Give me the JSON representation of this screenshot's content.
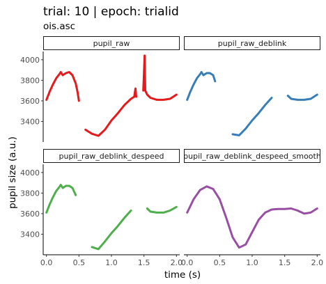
{
  "chart_data": {
    "type": "line",
    "title": "trial: 10 | epoch: trialid",
    "subtitle": "ois.asc",
    "xlabel": "time (s)",
    "ylabel": "pupil size (a.u.)",
    "xlim": [
      -0.05,
      2.05
    ],
    "ylim": [
      3200,
      4080
    ],
    "x_ticks": [
      0.0,
      0.5,
      1.0,
      1.5,
      2.0
    ],
    "x_tick_labels": [
      "0.0",
      "0.5",
      "1.0",
      "1.5",
      "2.0"
    ],
    "y_ticks": [
      3400,
      3600,
      3800,
      4000
    ],
    "y_tick_labels": [
      "3400",
      "3600",
      "3800",
      "4000"
    ],
    "grid": false,
    "panels": [
      {
        "label": "pupil_raw",
        "color": "#E41A1C",
        "segments": [
          [
            [
              0.0,
              3610
            ],
            [
              0.05,
              3690
            ],
            [
              0.1,
              3760
            ],
            [
              0.15,
              3820
            ],
            [
              0.2,
              3860
            ],
            [
              0.22,
              3880
            ],
            [
              0.25,
              3850
            ],
            [
              0.3,
              3870
            ],
            [
              0.35,
              3880
            ],
            [
              0.4,
              3850
            ],
            [
              0.45,
              3770
            ],
            [
              0.48,
              3680
            ],
            [
              0.5,
              3600
            ]
          ],
          [
            [
              0.6,
              3320
            ],
            [
              0.7,
              3280
            ],
            [
              0.8,
              3260
            ],
            [
              0.9,
              3320
            ],
            [
              1.0,
              3410
            ],
            [
              1.1,
              3480
            ],
            [
              1.2,
              3560
            ],
            [
              1.3,
              3620
            ],
            [
              1.35,
              3640
            ],
            [
              1.37,
              3720
            ],
            [
              1.38,
              3640
            ]
          ],
          [
            [
              1.49,
              3700
            ],
            [
              1.5,
              3870
            ],
            [
              1.51,
              4040
            ],
            [
              1.52,
              3700
            ],
            [
              1.55,
              3660
            ],
            [
              1.6,
              3630
            ],
            [
              1.7,
              3610
            ],
            [
              1.8,
              3610
            ],
            [
              1.9,
              3620
            ],
            [
              2.0,
              3660
            ]
          ]
        ]
      },
      {
        "label": "pupil_raw_deblink",
        "color": "#377EB8",
        "segments": [
          [
            [
              0.0,
              3610
            ],
            [
              0.05,
              3690
            ],
            [
              0.1,
              3760
            ],
            [
              0.15,
              3820
            ],
            [
              0.2,
              3860
            ],
            [
              0.22,
              3880
            ],
            [
              0.25,
              3850
            ],
            [
              0.3,
              3870
            ],
            [
              0.35,
              3870
            ],
            [
              0.4,
              3850
            ],
            [
              0.43,
              3790
            ]
          ],
          [
            [
              0.7,
              3275
            ],
            [
              0.8,
              3265
            ],
            [
              0.9,
              3330
            ],
            [
              1.0,
              3410
            ],
            [
              1.1,
              3480
            ],
            [
              1.2,
              3560
            ],
            [
              1.3,
              3630
            ]
          ],
          [
            [
              1.55,
              3650
            ],
            [
              1.6,
              3620
            ],
            [
              1.7,
              3610
            ],
            [
              1.8,
              3610
            ],
            [
              1.9,
              3620
            ],
            [
              2.0,
              3660
            ]
          ]
        ]
      },
      {
        "label": "pupil_raw_deblink_despeed",
        "color": "#4DAF4A",
        "segments": [
          [
            [
              0.0,
              3610
            ],
            [
              0.05,
              3690
            ],
            [
              0.1,
              3760
            ],
            [
              0.15,
              3820
            ],
            [
              0.2,
              3860
            ],
            [
              0.22,
              3880
            ],
            [
              0.25,
              3850
            ],
            [
              0.3,
              3870
            ],
            [
              0.35,
              3870
            ],
            [
              0.4,
              3850
            ],
            [
              0.45,
              3780
            ]
          ],
          [
            [
              0.7,
              3275
            ],
            [
              0.8,
              3255
            ],
            [
              0.9,
              3330
            ],
            [
              1.0,
              3410
            ],
            [
              1.1,
              3480
            ],
            [
              1.2,
              3560
            ],
            [
              1.3,
              3630
            ]
          ],
          [
            [
              1.55,
              3650
            ],
            [
              1.6,
              3620
            ],
            [
              1.7,
              3610
            ],
            [
              1.8,
              3610
            ],
            [
              1.9,
              3630
            ],
            [
              2.0,
              3665
            ]
          ]
        ]
      },
      {
        "label": "pupil_raw_deblink_despeed_smooth",
        "color": "#984EA3",
        "segments": [
          [
            [
              0.0,
              3610
            ],
            [
              0.1,
              3740
            ],
            [
              0.2,
              3830
            ],
            [
              0.3,
              3865
            ],
            [
              0.4,
              3840
            ],
            [
              0.5,
              3740
            ],
            [
              0.6,
              3560
            ],
            [
              0.7,
              3370
            ],
            [
              0.8,
              3270
            ],
            [
              0.9,
              3300
            ],
            [
              1.0,
              3420
            ],
            [
              1.1,
              3540
            ],
            [
              1.2,
              3610
            ],
            [
              1.3,
              3640
            ],
            [
              1.4,
              3645
            ],
            [
              1.5,
              3645
            ],
            [
              1.6,
              3650
            ],
            [
              1.7,
              3630
            ],
            [
              1.8,
              3600
            ],
            [
              1.9,
              3610
            ],
            [
              2.0,
              3650
            ]
          ]
        ]
      }
    ]
  }
}
